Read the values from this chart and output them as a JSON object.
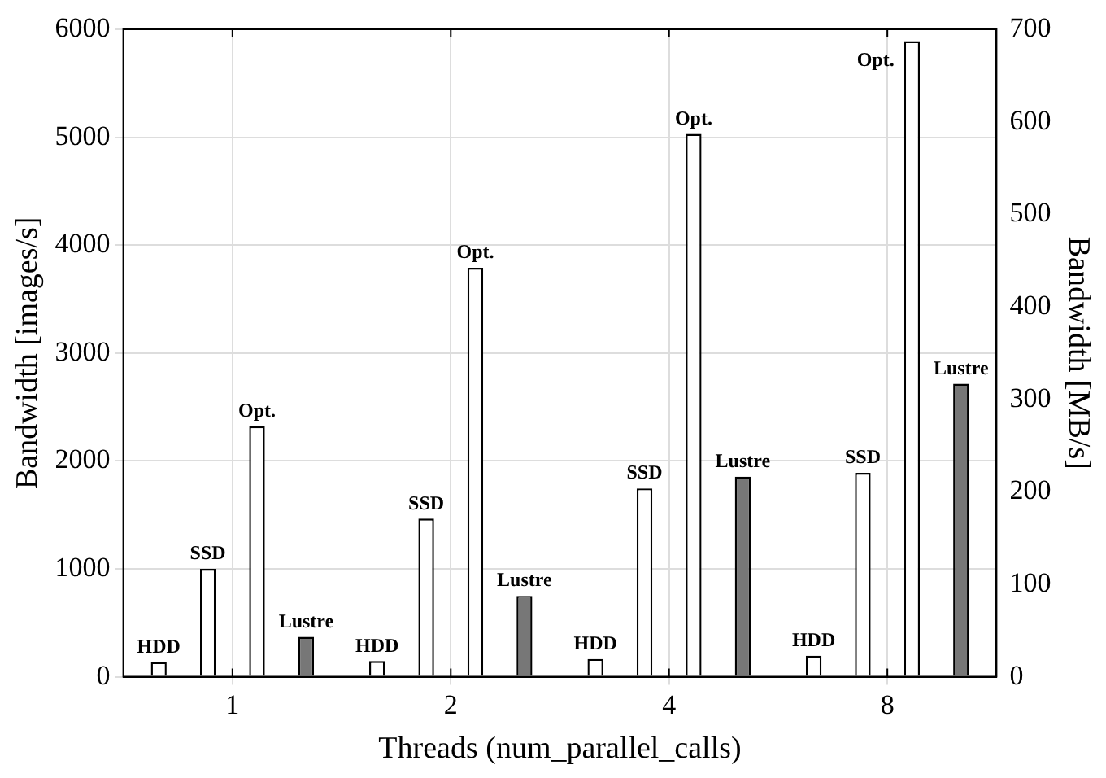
{
  "chart_data": {
    "type": "bar",
    "xlabel": "Threads (num_parallel_calls)",
    "ylabel": "Bandwidth [images/s]",
    "y2label": "Bandwidth [MB/s]",
    "categories": [
      "1",
      "2",
      "4",
      "8"
    ],
    "series": [
      {
        "name": "HDD",
        "color": "#ffffff",
        "values": [
          135,
          145,
          165,
          195
        ]
      },
      {
        "name": "SSD",
        "color": "#ffffff",
        "values": [
          1000,
          1465,
          1745,
          1890
        ]
      },
      {
        "name": "Opt.",
        "color": "#ffffff",
        "values": [
          2320,
          3790,
          5030,
          5890
        ]
      },
      {
        "name": "Lustre",
        "color": "#777777",
        "values": [
          370,
          750,
          1855,
          2715
        ]
      }
    ],
    "ylim": [
      0,
      6000
    ],
    "yticks": [
      0,
      1000,
      2000,
      3000,
      4000,
      5000,
      6000
    ],
    "y2lim": [
      0,
      700
    ],
    "y2ticks": [
      0,
      100,
      200,
      300,
      400,
      500,
      600,
      700
    ],
    "grid": true,
    "legend": false
  }
}
